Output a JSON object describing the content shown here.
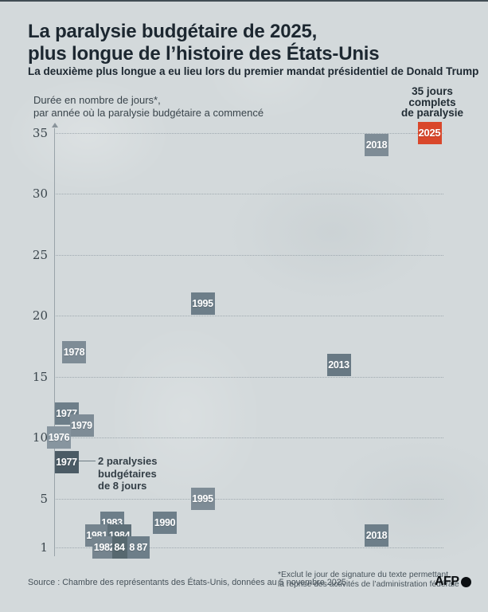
{
  "header": {
    "title_line1": "La paralysie budgétaire de 2025,",
    "title_line2": "plus longue de l’histoire des États-Unis",
    "subtitle": "La deuxième plus longue a eu lieu lors du premier mandat présidentiel de Donald Trump"
  },
  "chart_data": {
    "type": "scatter",
    "title": "La paralysie budgétaire de 2025, plus longue de l’histoire des États-Unis",
    "axis_label_line1": "Durée en nombre de jours*,",
    "axis_label_line2": "par année où la paralysie budgétaire a commencé",
    "callout_lines": [
      "35 jours",
      "complets",
      "de paralysie"
    ],
    "xlabel": "",
    "ylabel": "Durée en nombre de jours",
    "x_range": [
      1976,
      2025
    ],
    "ylim": [
      1,
      35
    ],
    "yticks": [
      35,
      30,
      25,
      20,
      15,
      10,
      5,
      1
    ],
    "grid": "horizontal dotted",
    "accent_color": "#d9472b",
    "box_color_default": "#7e8c96",
    "points": [
      {
        "label": "1978",
        "year": 1978,
        "days": 17,
        "color": "#7e8c96"
      },
      {
        "label": "1977",
        "year": 1977,
        "days": 12,
        "color": "#6d7e89"
      },
      {
        "label": "1979",
        "year": 1979,
        "days": 11,
        "color": "#7e8c96"
      },
      {
        "label": "1976",
        "year": 1976,
        "days": 10,
        "color": "#87959f"
      },
      {
        "label": "1977",
        "year": 1977,
        "days": 8,
        "color": "#4b5b65",
        "note": "2 paralysies budgétaires de 8 jours"
      },
      {
        "label": "1983",
        "year": 1983,
        "days": 3,
        "color": "#6d7e89"
      },
      {
        "label": "1981",
        "year": 1981,
        "days": 2,
        "color": "#75848e"
      },
      {
        "label": "1984",
        "year": 1984,
        "days": 2,
        "color": "#5f7079"
      },
      {
        "label": "1982",
        "year": 1982,
        "days": 1,
        "color": "#75848e"
      },
      {
        "label": "84",
        "year": 1984,
        "days": 1,
        "color": "#57686f",
        "small": true
      },
      {
        "label": "86",
        "year": 1986,
        "days": 1,
        "color": "#6d7e89",
        "small": true
      },
      {
        "label": "87",
        "year": 1987,
        "days": 1,
        "color": "#6d7e89",
        "small": true
      },
      {
        "label": "1990",
        "year": 1990,
        "days": 3,
        "color": "#6d7e89"
      },
      {
        "label": "1995",
        "year": 1995,
        "days": 21,
        "color": "#6d7e89"
      },
      {
        "label": "1995",
        "year": 1995,
        "days": 5,
        "color": "#7e8c96"
      },
      {
        "label": "2013",
        "year": 2013,
        "days": 16,
        "color": "#687984"
      },
      {
        "label": "2018",
        "year": 2018,
        "days": 34,
        "color": "#7e8c96"
      },
      {
        "label": "2018",
        "year": 2018,
        "days": 2,
        "color": "#6d7e89"
      },
      {
        "label": "2025",
        "year": 2025,
        "days": 35,
        "color": "#d9472b",
        "highlight": true
      }
    ],
    "annotation": {
      "lines": [
        "2 paralysies",
        "budgétaires",
        "de 8 jours"
      ]
    }
  },
  "footer": {
    "source": "Source : Chambre des représentants des États-Unis, données au 5 novembre 2025",
    "footnote_line1": "*Exclut le jour de signature du texte permettant",
    "footnote_line2": "la reprise des activités de l’administration fédérale",
    "logo_text": "AFP"
  }
}
